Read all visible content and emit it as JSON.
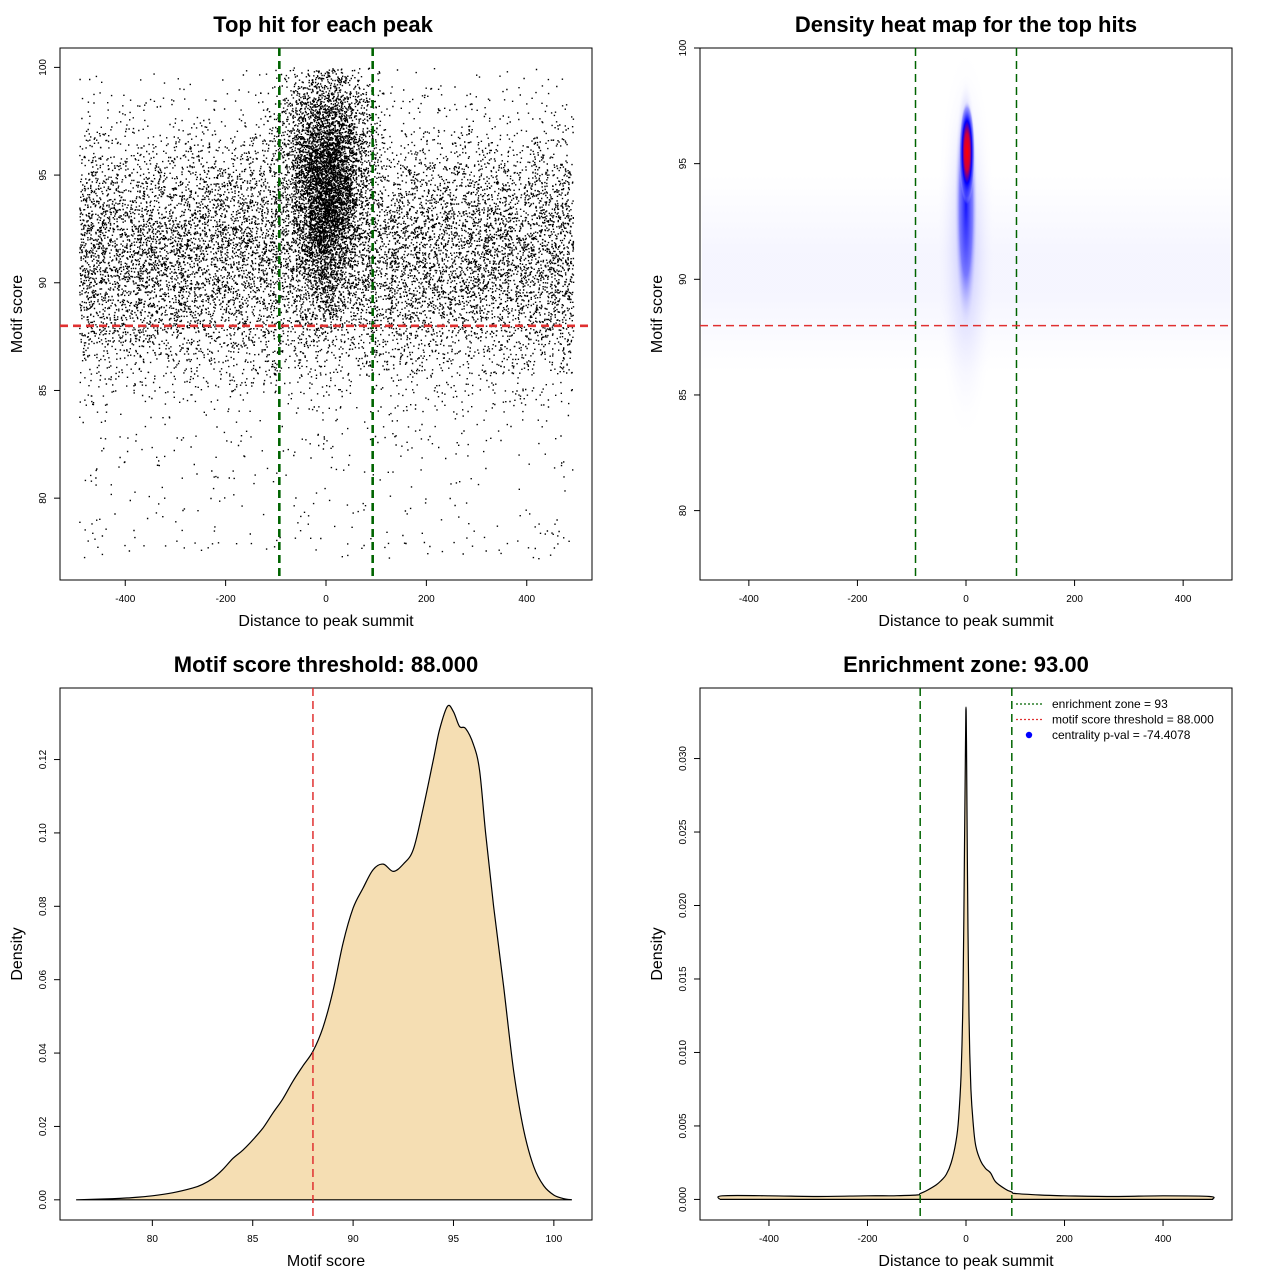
{
  "chart_data": [
    {
      "id": "scatter",
      "type": "scatter",
      "title": "Top hit for each peak",
      "xlabel": "Distance to peak summit",
      "ylabel": "Motif score",
      "xlim": [
        -530,
        530
      ],
      "ylim": [
        76.2,
        100.9
      ],
      "xticks": [
        -400,
        -200,
        0,
        200,
        400
      ],
      "yticks": [
        80,
        85,
        90,
        95,
        100
      ],
      "points_description": "",
      "vlines": [
        {
          "x": -93,
          "color": "#006400",
          "style": "dashed"
        },
        {
          "x": 93,
          "color": "#006400",
          "style": "dashed"
        }
      ],
      "hlines": [
        {
          "y": 88,
          "color": "#e03030",
          "style": "dashed"
        }
      ]
    },
    {
      "id": "heatmap",
      "type": "heatmap",
      "title": "Density heat map for the top hits",
      "xlabel": "Distance to peak summit",
      "ylabel": "Motif score",
      "xlim": [
        -490,
        490
      ],
      "ylim": [
        77,
        100
      ],
      "xticks": [
        -400,
        -200,
        0,
        200,
        400
      ],
      "yticks": [
        80,
        85,
        90,
        95,
        100
      ],
      "density_peak": {
        "x": 0,
        "y": 95.5
      },
      "colors": [
        "#ffffff",
        "#0000ff",
        "#ff0000"
      ],
      "vlines": [
        {
          "x": -93,
          "color": "#006400",
          "style": "dashed"
        },
        {
          "x": 93,
          "color": "#006400",
          "style": "dashed"
        }
      ],
      "hlines": [
        {
          "y": 88,
          "color": "#e03030",
          "style": "dashed"
        }
      ]
    },
    {
      "id": "scoredensity",
      "type": "area",
      "title": "Motif score threshold: 88.000",
      "xlabel": "Motif score",
      "ylabel": "Density",
      "xlim": [
        75.4,
        101.9
      ],
      "ylim": [
        -0.0055,
        0.1395
      ],
      "xticks": [
        80,
        85,
        90,
        95,
        100
      ],
      "yticks": [
        0.0,
        0.02,
        0.04,
        0.06,
        0.08,
        0.1,
        0.12
      ],
      "ytick_labels": [
        "0.00",
        "0.02",
        "0.04",
        "0.06",
        "0.08",
        "0.10",
        "0.12"
      ],
      "fill": "#f5deb3",
      "x": [
        76.2,
        78,
        79,
        80,
        81,
        82,
        82.5,
        83,
        83.5,
        84,
        84.5,
        85,
        85.5,
        86,
        86.5,
        87,
        87.5,
        88,
        88.5,
        89,
        89.5,
        90,
        90.5,
        91,
        91.5,
        92,
        92.5,
        93,
        93.5,
        94,
        94.3,
        94.7,
        95,
        95.3,
        95.6,
        96,
        96.3,
        96.6,
        97,
        97.5,
        98,
        98.5,
        99,
        99.5,
        100,
        100.5,
        100.9
      ],
      "y": [
        0.0,
        0.0003,
        0.0006,
        0.0011,
        0.0019,
        0.0032,
        0.0042,
        0.0058,
        0.0082,
        0.0112,
        0.0135,
        0.0163,
        0.0195,
        0.0236,
        0.0275,
        0.0323,
        0.0365,
        0.0405,
        0.047,
        0.057,
        0.07,
        0.0795,
        0.085,
        0.09,
        0.0915,
        0.0895,
        0.0915,
        0.0955,
        0.107,
        0.12,
        0.128,
        0.1345,
        0.133,
        0.129,
        0.1285,
        0.124,
        0.117,
        0.1,
        0.08,
        0.058,
        0.035,
        0.019,
        0.009,
        0.0038,
        0.0013,
        0.0003,
        0.0
      ],
      "vlines": [
        {
          "x": 88,
          "color": "#e03030",
          "style": "dashed"
        }
      ]
    },
    {
      "id": "distdensity",
      "type": "area",
      "title": "Enrichment zone: 93.00",
      "xlabel": "Distance to peak summit",
      "ylabel": "Density",
      "xlim": [
        -540,
        540
      ],
      "ylim": [
        -0.0014,
        0.0348
      ],
      "xticks": [
        -400,
        -200,
        0,
        200,
        400
      ],
      "yticks": [
        0.0,
        0.005,
        0.01,
        0.015,
        0.02,
        0.025,
        0.03
      ],
      "ytick_labels": [
        "0.000",
        "0.005",
        "0.010",
        "0.015",
        "0.020",
        "0.025",
        "0.030"
      ],
      "fill": "#f5deb3",
      "x": [
        -500,
        -495,
        -400,
        -300,
        -200,
        -150,
        -100,
        -93,
        -80,
        -60,
        -50,
        -40,
        -30,
        -20,
        -15,
        -10,
        -6,
        -3,
        -1,
        0,
        1,
        3,
        6,
        10,
        15,
        20,
        30,
        40,
        50,
        60,
        80,
        93,
        100,
        150,
        200,
        300,
        400,
        495,
        500
      ],
      "y": [
        0.0,
        0.00025,
        0.00025,
        0.0002,
        0.00025,
        0.00025,
        0.0003,
        0.0004,
        0.0006,
        0.001,
        0.0013,
        0.0017,
        0.0025,
        0.004,
        0.0055,
        0.0085,
        0.014,
        0.024,
        0.031,
        0.0335,
        0.031,
        0.022,
        0.0125,
        0.0075,
        0.005,
        0.0036,
        0.0026,
        0.0021,
        0.0018,
        0.0012,
        0.0007,
        0.0005,
        0.0004,
        0.0003,
        0.00025,
        0.0002,
        0.00025,
        0.0002,
        0.0
      ],
      "vlines": [
        {
          "x": -93,
          "color": "#006400",
          "style": "dashed"
        },
        {
          "x": 93,
          "color": "#006400",
          "style": "dashed"
        }
      ],
      "legend": [
        {
          "label": "enrichment zone = 93",
          "type": "line",
          "color": "#006400",
          "style": "dotted"
        },
        {
          "label": "motif score threshold = 88.000",
          "type": "line",
          "color": "#e03030",
          "style": "dotted"
        },
        {
          "label": "centrality p-val = -74.4078",
          "type": "point",
          "color": "#0000ff"
        }
      ],
      "legend_position": "top-right"
    }
  ]
}
